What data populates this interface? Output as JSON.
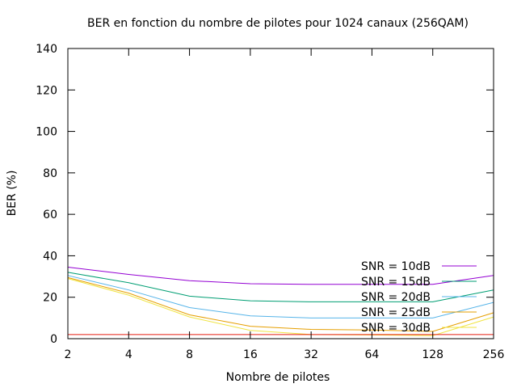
{
  "chart_data": {
    "type": "line",
    "title": "BER en fonction du nombre de pilotes pour 1024 canaux (256QAM)",
    "xlabel": "Nombre de pilotes",
    "ylabel": "BER (%)",
    "x_scale": "log2",
    "categories": [
      "2",
      "4",
      "8",
      "16",
      "32",
      "64",
      "128",
      "256"
    ],
    "x": [
      2,
      4,
      8,
      16,
      32,
      64,
      128,
      256
    ],
    "ylim": [
      0,
      140
    ],
    "yticks": [
      "0",
      "20",
      "40",
      "60",
      "80",
      "100",
      "120",
      "140"
    ],
    "grid": false,
    "legend_position": "bottom-right",
    "series": [
      {
        "name": "SNR = 10dB",
        "color": "#9400d3",
        "values": [
          34.5,
          31,
          28,
          26.5,
          26.2,
          26.2,
          26.2,
          30.5
        ]
      },
      {
        "name": "SNR = 15dB",
        "color": "#009e73",
        "values": [
          32,
          27,
          20.5,
          18.3,
          17.8,
          17.8,
          17.8,
          23.5
        ]
      },
      {
        "name": "SNR = 20dB",
        "color": "#56b4e9",
        "values": [
          30.5,
          23.5,
          15,
          11,
          10,
          10,
          10,
          17.5
        ]
      },
      {
        "name": "SNR = 25dB",
        "color": "#e69f00",
        "values": [
          29.5,
          22,
          11.5,
          6,
          4.5,
          4.2,
          3.5,
          12.5
        ]
      },
      {
        "name": "SNR = 30dB",
        "color": "#f0e442",
        "values": [
          29,
          21,
          10.5,
          4,
          2,
          1.8,
          1.5,
          10.5
        ]
      },
      {
        "name": "",
        "color": "#e51e10",
        "values": [
          2,
          2,
          2,
          2,
          2,
          2,
          2,
          2
        ]
      }
    ]
  }
}
